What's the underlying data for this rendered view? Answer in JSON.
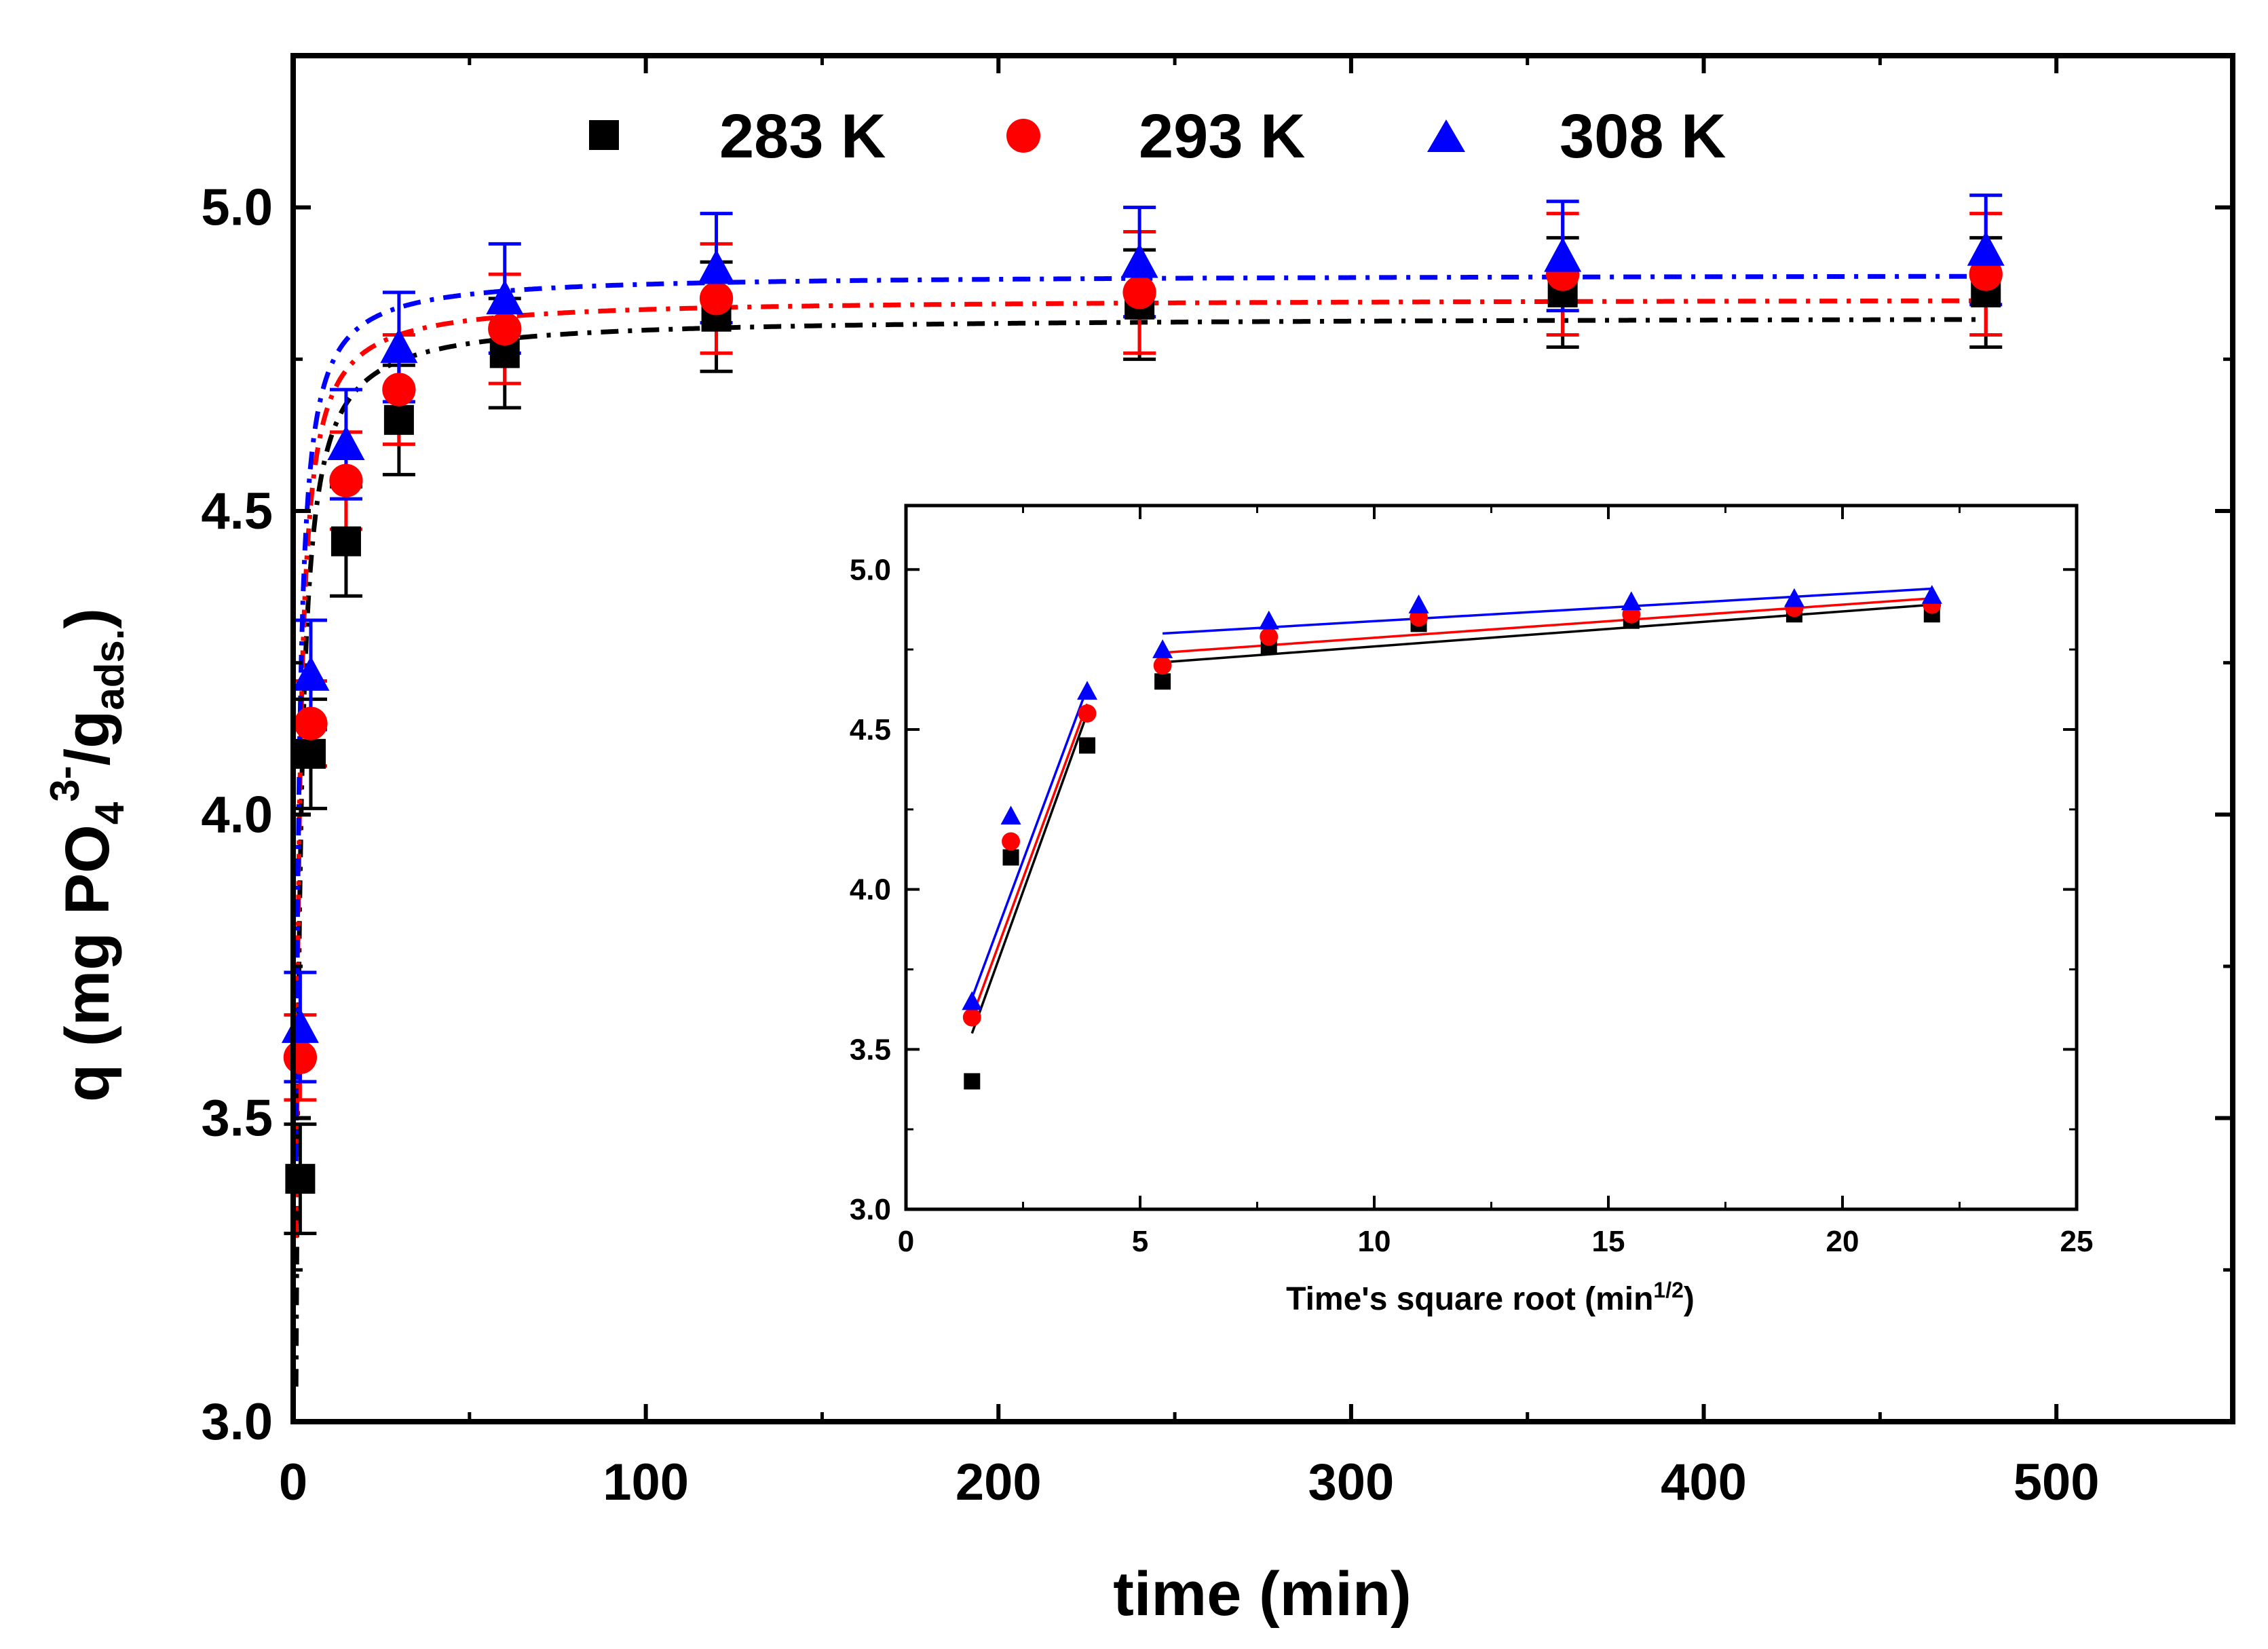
{
  "chart_data": [
    {
      "panel": "main",
      "type": "scatter",
      "xlabel": "time (min)",
      "ylabel": {
        "prefix": "q (mg PO",
        "sub1": "4",
        "sup": "3-",
        "mid": "/g",
        "sub2": "ads.",
        "suffix": ")"
      },
      "xlim": [
        0,
        550
      ],
      "ylim": [
        3.0,
        5.25
      ],
      "xticks": [
        0,
        100,
        200,
        300,
        400,
        500
      ],
      "xtick_labels": [
        "0",
        "100",
        "200",
        "300",
        "400",
        "500"
      ],
      "yticks": [
        3.0,
        3.5,
        4.0,
        4.5,
        5.0
      ],
      "ytick_labels": [
        "3.0",
        "3.5",
        "4.0",
        "4.5",
        "5.0"
      ],
      "legend": [
        "283 K",
        "293 K",
        "308 K"
      ],
      "x": [
        2,
        5,
        15,
        30,
        60,
        120,
        240,
        360,
        480
      ],
      "series": [
        {
          "name": "283 K",
          "marker": "square",
          "color": "#000000",
          "values": [
            3.4,
            4.1,
            4.45,
            4.65,
            4.76,
            4.82,
            4.84,
            4.86,
            4.86
          ],
          "errors": [
            0.09,
            0.09,
            0.09,
            0.09,
            0.09,
            0.09,
            0.09,
            0.09,
            0.09
          ],
          "fit": {
            "qe": 4.82,
            "k": 0.45
          }
        },
        {
          "name": "293 K",
          "marker": "circle",
          "color": "#ff0000",
          "values": [
            3.6,
            4.15,
            4.55,
            4.7,
            4.8,
            4.85,
            4.86,
            4.89,
            4.89
          ],
          "errors": [
            0.07,
            0.07,
            0.08,
            0.09,
            0.09,
            0.09,
            0.1,
            0.1,
            0.1
          ],
          "fit": {
            "qe": 4.85,
            "k": 0.55
          }
        },
        {
          "name": "308 K",
          "marker": "triangle",
          "color": "#0000ff",
          "values": [
            3.65,
            4.23,
            4.61,
            4.77,
            4.85,
            4.9,
            4.91,
            4.92,
            4.93
          ],
          "errors": [
            0.09,
            0.09,
            0.09,
            0.09,
            0.09,
            0.09,
            0.09,
            0.09,
            0.09
          ],
          "fit": {
            "qe": 4.89,
            "k": 0.6
          }
        }
      ]
    },
    {
      "panel": "inset",
      "type": "scatter",
      "xlabel": {
        "text": "Time's square root (min",
        "sup": "1/2",
        "suffix": ")"
      },
      "ylabel": "",
      "xlim": [
        0,
        25
      ],
      "ylim": [
        3.0,
        5.2
      ],
      "xticks": [
        0,
        5,
        10,
        15,
        20,
        25
      ],
      "xtick_labels": [
        "0",
        "5",
        "10",
        "15",
        "20",
        "25"
      ],
      "yticks": [
        3.0,
        3.5,
        4.0,
        4.5,
        5.0
      ],
      "ytick_labels": [
        "3.0",
        "3.5",
        "4.0",
        "4.5",
        "5.0"
      ],
      "x": [
        1.41,
        2.24,
        3.87,
        5.48,
        7.75,
        10.95,
        15.49,
        18.97,
        21.91
      ],
      "series": [
        {
          "name": "283 K",
          "marker": "square",
          "color": "#000000",
          "values": [
            3.4,
            4.1,
            4.45,
            4.65,
            4.76,
            4.83,
            4.84,
            4.86,
            4.86
          ],
          "fit_segments": [
            {
              "x": [
                1.41,
                3.87
              ],
              "y": [
                3.55,
                4.55
              ]
            },
            {
              "x": [
                5.48,
                21.91
              ],
              "y": [
                4.71,
                4.89
              ]
            }
          ]
        },
        {
          "name": "293 K",
          "marker": "circle",
          "color": "#ff0000",
          "values": [
            3.6,
            4.15,
            4.55,
            4.7,
            4.79,
            4.85,
            4.86,
            4.88,
            4.89
          ],
          "fit_segments": [
            {
              "x": [
                1.41,
                3.87
              ],
              "y": [
                3.6,
                4.58
              ]
            },
            {
              "x": [
                5.48,
                21.91
              ],
              "y": [
                4.74,
                4.91
              ]
            }
          ]
        },
        {
          "name": "308 K",
          "marker": "triangle",
          "color": "#0000ff",
          "values": [
            3.65,
            4.23,
            4.62,
            4.75,
            4.84,
            4.89,
            4.9,
            4.91,
            4.92
          ],
          "fit_segments": [
            {
              "x": [
                1.41,
                3.87
              ],
              "y": [
                3.66,
                4.63
              ]
            },
            {
              "x": [
                5.48,
                21.91
              ],
              "y": [
                4.8,
                4.94
              ]
            }
          ]
        }
      ]
    }
  ]
}
